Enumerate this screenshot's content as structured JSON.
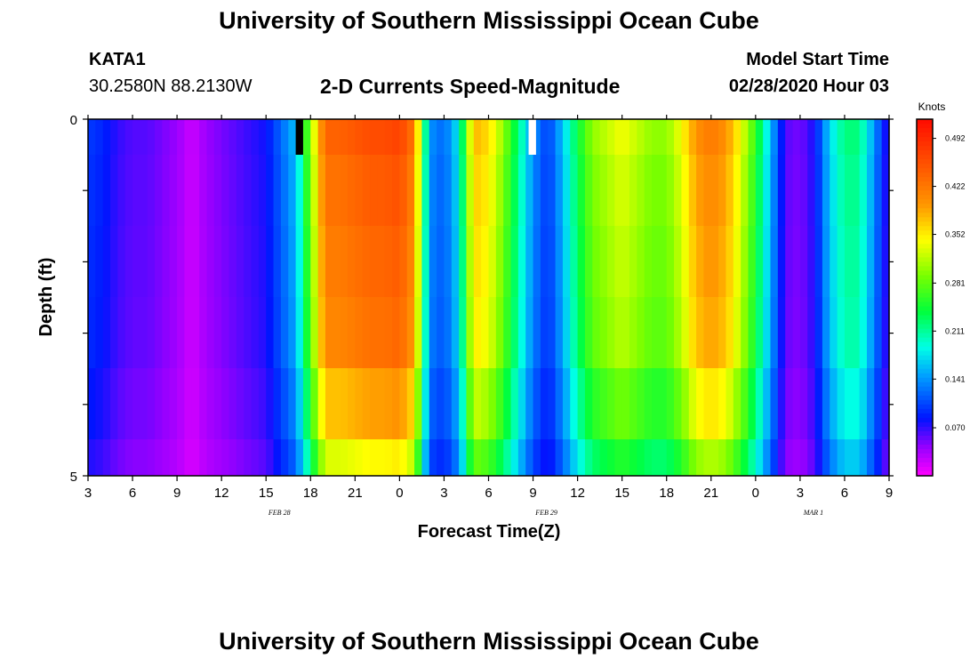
{
  "header": {
    "title": "University of Southern Mississippi Ocean Cube",
    "station": "KATA1",
    "coordinates": "30.2580N 88.2130W",
    "model_start_label": "Model Start Time",
    "model_start_value": "02/28/2020 Hour 03"
  },
  "footer": {
    "title": "University of Southern Mississippi Ocean Cube"
  },
  "chart_data": {
    "type": "heatmap",
    "title": "2-D Currents Speed-Magnitude",
    "xlabel": "Forecast Time(Z)",
    "ylabel": "Depth (ft)",
    "x_tick_labels": [
      "3",
      "6",
      "9",
      "12",
      "15",
      "18",
      "21",
      "0",
      "3",
      "6",
      "9",
      "12",
      "15",
      "18",
      "21",
      "0",
      "3",
      "6",
      "9"
    ],
    "date_labels": [
      {
        "text": "FEB 28",
        "after_tick": 4
      },
      {
        "text": "FEB 29",
        "after_tick": 10
      },
      {
        "text": "MAR 1",
        "after_tick": 16
      }
    ],
    "y_tick_labels": [
      "0",
      "5"
    ],
    "y_range": [
      0,
      5
    ],
    "x_range_hours": [
      0,
      54
    ],
    "colorbar": {
      "unit": "Knots",
      "ticks": [
        "0.492",
        "0.422",
        "0.352",
        "0.281",
        "0.211",
        "0.141",
        "0.070"
      ],
      "min": 0.0,
      "max": 0.52
    },
    "hourly_speed_knots": [
      0.1,
      0.09,
      0.07,
      0.06,
      0.06,
      0.05,
      0.04,
      0.02,
      0.04,
      0.05,
      0.06,
      0.07,
      0.08,
      0.12,
      0.16,
      0.3,
      0.44,
      0.44,
      0.45,
      0.46,
      0.46,
      0.47,
      0.42,
      0.14,
      0.12,
      0.18,
      0.38,
      0.36,
      0.3,
      0.22,
      0.14,
      0.1,
      0.16,
      0.24,
      0.3,
      0.32,
      0.34,
      0.32,
      0.3,
      0.3,
      0.34,
      0.4,
      0.42,
      0.4,
      0.34,
      0.26,
      0.16,
      0.06,
      0.05,
      0.08,
      0.17,
      0.22,
      0.22,
      0.14,
      0.06
    ],
    "depth_factors": [
      1.0,
      0.97,
      0.95,
      0.93,
      0.85,
      0.75,
      0.64
    ],
    "anomalies": [
      {
        "type": "no-data",
        "hour": 14,
        "depth_row": 0
      },
      {
        "type": "max",
        "hour": 29.7,
        "depth_row": 0
      }
    ]
  }
}
